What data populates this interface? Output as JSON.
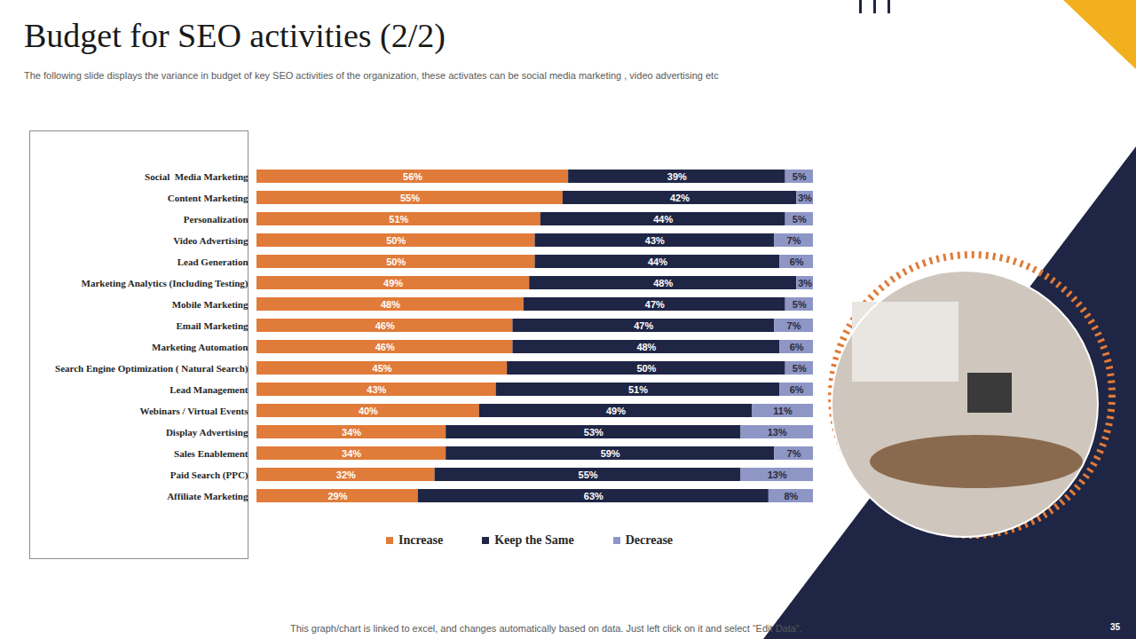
{
  "chart_data": {
    "type": "bar",
    "title": "Budget for SEO activities (2/2)",
    "subtitle": "The following slide displays the variance in budget of key SEO activities of the organization, these activates can be social media marketing , video advertising etc",
    "caption": "This graph/chart is linked to excel, and changes automatically based on data. Just left click on it and select “Edit Data”.",
    "page_number": "35",
    "orientation": "horizontal",
    "stacked": true,
    "data_labels": true,
    "grid": false,
    "legend": "bottom",
    "tick_labels": "y",
    "xlim": [
      0,
      100
    ],
    "categories": [
      "Social  Media Marketing",
      "Content Marketing",
      "Personalization",
      "Video Advertising",
      "Lead Generation",
      "Marketing Analytics (Including Testing)",
      "Mobile Marketing",
      "Email Marketing",
      "Marketing Automation",
      "Search Engine Optimization ( Natural Search)",
      "Lead Management",
      "Webinars / Virtual Events",
      "Display Advertising",
      "Sales Enablement",
      "Paid Search (PPC)",
      "Affiliate Marketing"
    ],
    "series": [
      {
        "name": "Increase",
        "color": "#e07b39",
        "values": [
          56,
          55,
          51,
          50,
          50,
          49,
          48,
          46,
          46,
          45,
          43,
          40,
          34,
          34,
          32,
          29
        ],
        "value_labels": [
          "56%",
          "55%",
          "51%",
          "50%",
          "50%",
          "49%",
          "48%",
          "46%",
          "46%",
          "45%",
          "43%",
          "40%",
          "34%",
          "34%",
          "32%",
          "29%"
        ]
      },
      {
        "name": "Keep the Same",
        "color": "#1f2544",
        "values": [
          39,
          42,
          44,
          43,
          44,
          48,
          47,
          47,
          48,
          50,
          51,
          49,
          53,
          59,
          55,
          63
        ],
        "value_labels": [
          "39%",
          "42%",
          "44%",
          "43%",
          "44%",
          "48%",
          "47%",
          "47%",
          "48%",
          "50%",
          "51%",
          "49%",
          "53%",
          "59%",
          "55%",
          "63%"
        ]
      },
      {
        "name": "Decrease",
        "color": "#8e96c6",
        "values": [
          5,
          3,
          5,
          7,
          6,
          3,
          5,
          7,
          6,
          5,
          6,
          11,
          13,
          7,
          13,
          8
        ],
        "value_labels": [
          "5%",
          "3%",
          "5%",
          "7%",
          "6%",
          "3%",
          "5%",
          "7%",
          "6%",
          "5%",
          "6%",
          "11%",
          "13%",
          "7%",
          "13%",
          "8%"
        ]
      }
    ]
  }
}
